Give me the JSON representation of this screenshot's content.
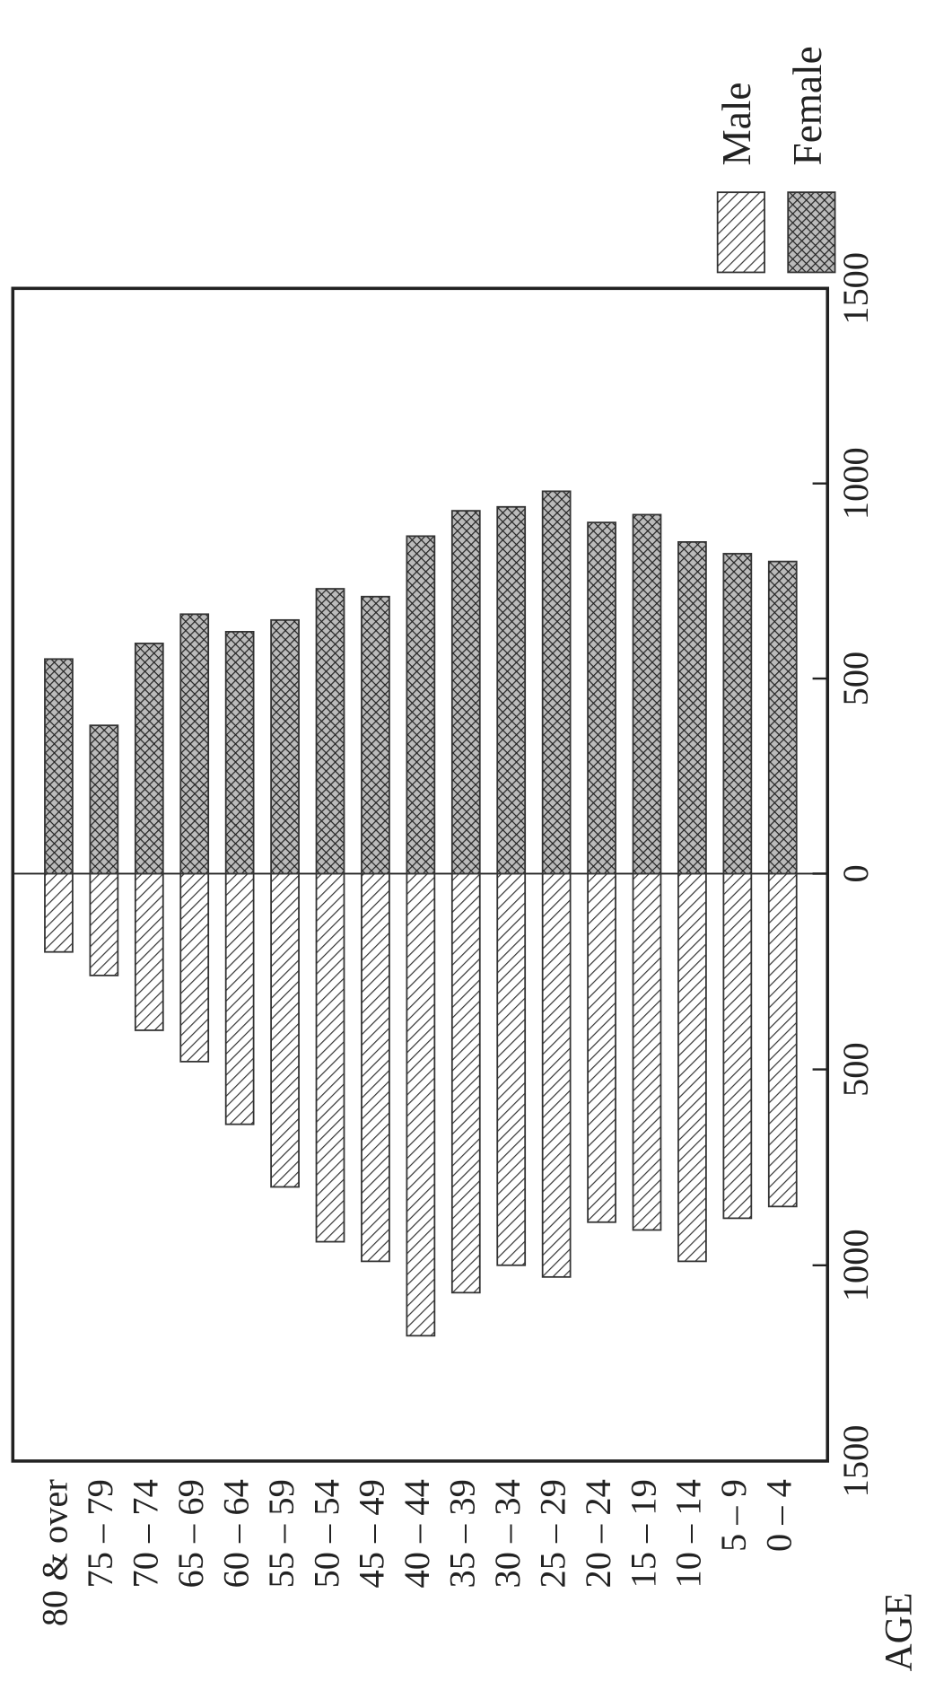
{
  "chart_data": {
    "type": "pyramid",
    "axis_label": "AGE",
    "categories": [
      "80 & over",
      "75 – 79",
      "70 – 74",
      "65 – 69",
      "60 – 64",
      "55 – 59",
      "50 – 54",
      "45 – 49",
      "40 – 44",
      "35 – 39",
      "30 – 34",
      "25 – 29",
      "20 – 24",
      "15 – 19",
      "10 – 14",
      "5 – 9",
      "0 – 4"
    ],
    "series": [
      {
        "name": "Male",
        "color": "#333333",
        "values": [
          200,
          260,
          400,
          480,
          640,
          800,
          940,
          990,
          1180,
          1070,
          1000,
          1030,
          890,
          910,
          990,
          880,
          850
        ]
      },
      {
        "name": "Female",
        "color": "#333333",
        "values": [
          550,
          380,
          590,
          665,
          620,
          650,
          730,
          710,
          865,
          930,
          940,
          980,
          900,
          920,
          850,
          820,
          800
        ]
      }
    ],
    "ylim": [
      0,
      1500
    ],
    "yticks": [
      0,
      500,
      1000,
      1500
    ]
  }
}
